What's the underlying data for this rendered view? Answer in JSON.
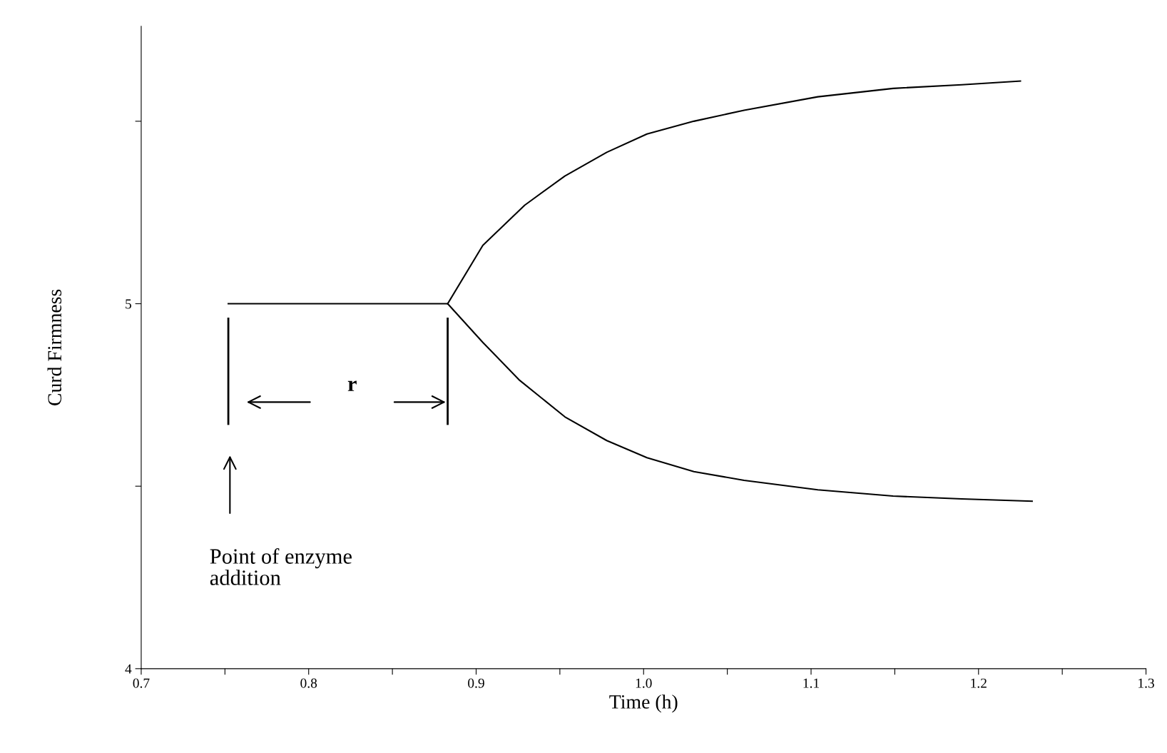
{
  "chart_data": {
    "type": "line",
    "xlabel": "Time (h)",
    "ylabel": "Curd Firmness",
    "xlim": [
      0.7,
      1.3
    ],
    "ylim": [
      4,
      5.76
    ],
    "xticks": [
      {
        "value": 0.7,
        "label": "0.7"
      },
      {
        "value": 0.75,
        "label": null
      },
      {
        "value": 0.8,
        "label": "0.8"
      },
      {
        "value": 0.85,
        "label": null
      },
      {
        "value": 0.9,
        "label": "0.9"
      },
      {
        "value": 0.95,
        "label": null
      },
      {
        "value": 1.0,
        "label": "1.0"
      },
      {
        "value": 1.05,
        "label": null
      },
      {
        "value": 1.1,
        "label": "1.1"
      },
      {
        "value": 1.15,
        "label": null
      },
      {
        "value": 1.2,
        "label": "1.2"
      },
      {
        "value": 1.25,
        "label": null
      },
      {
        "value": 1.3,
        "label": "1.3"
      }
    ],
    "yticks": [
      4,
      {
        "value": 4.5,
        "label": null
      },
      5,
      {
        "value": 5.5,
        "label": null
      }
    ],
    "grid": false,
    "marker": "none",
    "line_style": "solid",
    "series": [
      {
        "color": "#000000",
        "x": [
          0.752,
          0.883
        ],
        "values": [
          5.0,
          5.0
        ]
      },
      {
        "color": "#000000",
        "x": [
          0.883,
          0.904,
          0.929,
          0.953,
          0.978,
          1.002,
          1.03,
          1.06,
          1.104,
          1.149,
          1.19,
          1.225
        ],
        "values": [
          5.0,
          5.16,
          5.27,
          5.35,
          5.415,
          5.465,
          5.5,
          5.53,
          5.567,
          5.59,
          5.6,
          5.61
        ]
      },
      {
        "color": "#000000",
        "x": [
          0.883,
          0.904,
          0.926,
          0.953,
          0.978,
          1.002,
          1.03,
          1.06,
          1.104,
          1.149,
          1.19,
          1.232
        ],
        "values": [
          5.0,
          4.894,
          4.79,
          4.69,
          4.625,
          4.578,
          4.54,
          4.516,
          4.49,
          4.473,
          4.465,
          4.459
        ]
      }
    ],
    "annotations": [
      "r",
      "Point of enzyme\naddition"
    ]
  }
}
